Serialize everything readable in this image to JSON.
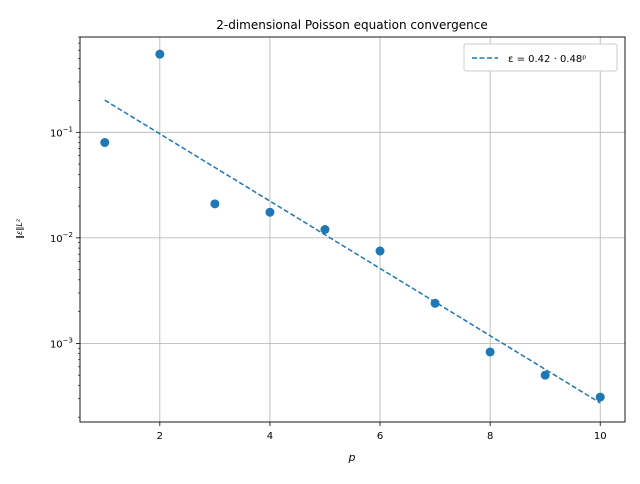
{
  "chart_data": {
    "type": "scatter",
    "title": "2-dimensional Poisson equation convergence",
    "xlabel": "p",
    "ylabel": "‖ε‖L²",
    "yscale": "log",
    "xlim": [
      0.55,
      10.45
    ],
    "ylim": [
      0.00018,
      0.8
    ],
    "xticks": [
      {
        "value": 2,
        "label": "2"
      },
      {
        "value": 4,
        "label": "4"
      },
      {
        "value": 6,
        "label": "6"
      },
      {
        "value": 8,
        "label": "8"
      },
      {
        "value": 10,
        "label": "10"
      }
    ],
    "yticks": [
      {
        "value": 0.1,
        "base": "10",
        "exp": "−1"
      },
      {
        "value": 0.01,
        "base": "10",
        "exp": "−2"
      },
      {
        "value": 0.001,
        "base": "10",
        "exp": "−3"
      }
    ],
    "grid": true,
    "legend_position": "top-right",
    "series": [
      {
        "kind": "scatter",
        "color": "#1f77b4",
        "x": [
          1,
          2,
          3,
          4,
          5,
          6,
          7,
          8,
          9,
          10
        ],
        "y": [
          0.08,
          0.55,
          0.021,
          0.0175,
          0.012,
          0.0075,
          0.0024,
          0.00083,
          0.0005,
          0.00031
        ]
      },
      {
        "kind": "fit-line",
        "name": "ε = 0.42 · 0.48ᵖ",
        "color": "#1f77b4",
        "coefficient": 0.42,
        "base": 0.48,
        "x_range": [
          1,
          10
        ]
      }
    ]
  }
}
